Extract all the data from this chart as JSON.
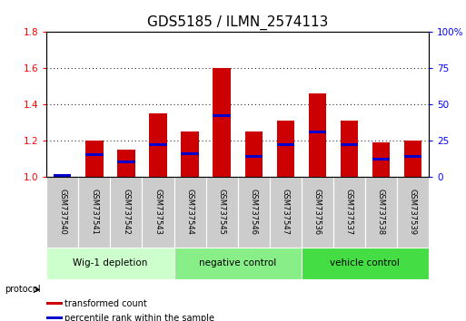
{
  "title": "GDS5185 / ILMN_2574113",
  "samples": [
    "GSM737540",
    "GSM737541",
    "GSM737542",
    "GSM737543",
    "GSM737544",
    "GSM737545",
    "GSM737546",
    "GSM737547",
    "GSM737536",
    "GSM737537",
    "GSM737538",
    "GSM737539"
  ],
  "transformed_count": [
    1.01,
    1.2,
    1.15,
    1.35,
    1.25,
    1.6,
    1.25,
    1.31,
    1.46,
    1.31,
    1.19,
    1.2
  ],
  "percentile_rank": [
    0.5,
    15.0,
    10.0,
    22.0,
    16.0,
    42.0,
    14.0,
    22.0,
    31.0,
    22.0,
    12.0,
    14.0
  ],
  "ylim_left": [
    1.0,
    1.8
  ],
  "ylim_right": [
    0,
    100
  ],
  "yticks_left": [
    1.0,
    1.2,
    1.4,
    1.6,
    1.8
  ],
  "yticks_right": [
    0,
    25,
    50,
    75,
    100
  ],
  "ytick_labels_right": [
    "0",
    "25",
    "50",
    "75",
    "100%"
  ],
  "bar_color": "#cc0000",
  "percentile_color": "#0000cc",
  "bar_width": 0.55,
  "groups": [
    {
      "label": "Wig-1 depletion",
      "indices": [
        0,
        1,
        2,
        3
      ],
      "color": "#ccffcc"
    },
    {
      "label": "negative control",
      "indices": [
        4,
        5,
        6,
        7
      ],
      "color": "#88ee88"
    },
    {
      "label": "vehicle control",
      "indices": [
        8,
        9,
        10,
        11
      ],
      "color": "#44dd44"
    }
  ],
  "protocol_label": "protocol",
  "legend_items": [
    {
      "label": "transformed count",
      "color": "#cc0000"
    },
    {
      "label": "percentile rank within the sample",
      "color": "#0000cc"
    }
  ],
  "title_fontsize": 11,
  "tick_fontsize": 7.5,
  "sample_fontsize": 6,
  "group_fontsize": 7.5,
  "sample_bg_color": "#cccccc",
  "figure_bg": "#ffffff",
  "left_label_color": "red",
  "right_label_color": "blue"
}
